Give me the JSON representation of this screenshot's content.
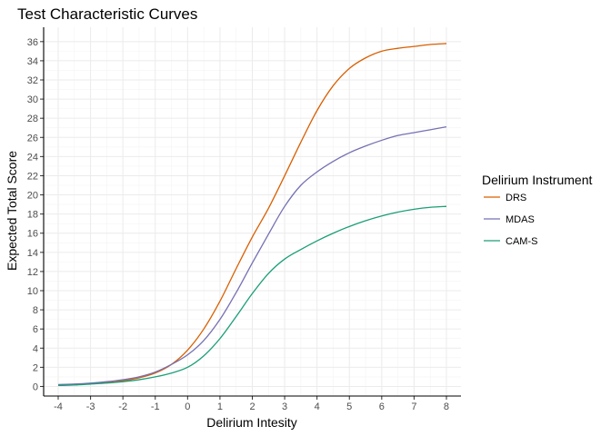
{
  "chart_data": {
    "type": "line",
    "title": "Test Characteristic Curves",
    "xlabel": "Delirium Intesity",
    "ylabel": "Expected Total Score",
    "xlim": [
      -4.45,
      8.45
    ],
    "ylim": [
      -1,
      37.5
    ],
    "x_ticks": [
      -4,
      -3,
      -2,
      -1,
      0,
      1,
      2,
      3,
      4,
      5,
      6,
      7,
      8
    ],
    "y_ticks": [
      0,
      2,
      4,
      6,
      8,
      10,
      12,
      14,
      16,
      18,
      20,
      22,
      24,
      26,
      28,
      30,
      32,
      34,
      36
    ],
    "grid": true,
    "legend": {
      "title": "Delirium Instrument",
      "position": "right"
    },
    "x": [
      -4,
      -3.5,
      -3,
      -2.5,
      -2,
      -1.5,
      -1,
      -0.5,
      0,
      0.5,
      1,
      1.5,
      2,
      2.5,
      3,
      3.5,
      4,
      4.5,
      5,
      5.5,
      6,
      6.5,
      7,
      7.5,
      8
    ],
    "series": [
      {
        "name": "DRS",
        "color": "#d95f02",
        "values": [
          0.1,
          0.2,
          0.3,
          0.4,
          0.6,
          0.9,
          1.4,
          2.3,
          3.8,
          6.0,
          8.9,
          12.3,
          15.6,
          18.6,
          22.0,
          25.5,
          28.8,
          31.4,
          33.2,
          34.3,
          35.0,
          35.3,
          35.5,
          35.7,
          35.8
        ]
      },
      {
        "name": "MDAS",
        "color": "#7570b3",
        "values": [
          0.2,
          0.25,
          0.35,
          0.5,
          0.7,
          1.0,
          1.5,
          2.3,
          3.3,
          4.8,
          7.0,
          9.8,
          12.9,
          15.9,
          18.8,
          21.0,
          22.4,
          23.5,
          24.4,
          25.1,
          25.7,
          26.2,
          26.5,
          26.8,
          27.1
        ]
      },
      {
        "name": "CAM-S",
        "color": "#1b9e77",
        "values": [
          0.1,
          0.15,
          0.25,
          0.35,
          0.5,
          0.7,
          1.0,
          1.4,
          2.0,
          3.2,
          5.0,
          7.3,
          9.7,
          11.8,
          13.3,
          14.3,
          15.2,
          16.0,
          16.7,
          17.3,
          17.8,
          18.2,
          18.5,
          18.7,
          18.8
        ]
      }
    ]
  }
}
